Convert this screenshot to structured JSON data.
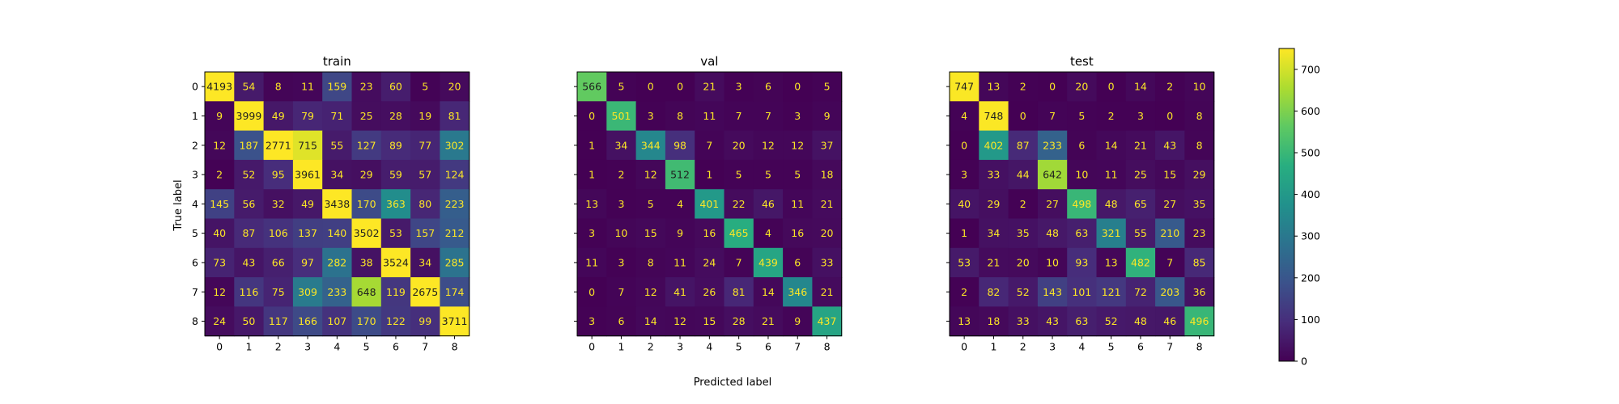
{
  "chart_data": {
    "type": "heatmap",
    "xlabel": "Predicted label",
    "ylabel": "True label",
    "classes": [
      "0",
      "1",
      "2",
      "3",
      "4",
      "5",
      "6",
      "7",
      "8"
    ],
    "colormap": "viridis",
    "color_range": [
      0,
      750
    ],
    "colorbar_ticks": [
      "0",
      "100",
      "200",
      "300",
      "400",
      "500",
      "600",
      "700"
    ],
    "panels": [
      {
        "title": "train",
        "matrix": [
          [
            4193,
            54,
            8,
            11,
            159,
            23,
            60,
            5,
            20
          ],
          [
            9,
            3999,
            49,
            79,
            71,
            25,
            28,
            19,
            81
          ],
          [
            12,
            187,
            2771,
            715,
            55,
            127,
            89,
            77,
            302
          ],
          [
            2,
            52,
            95,
            3961,
            34,
            29,
            59,
            57,
            124
          ],
          [
            145,
            56,
            32,
            49,
            3438,
            170,
            363,
            80,
            223
          ],
          [
            40,
            87,
            106,
            137,
            140,
            3502,
            53,
            157,
            212
          ],
          [
            73,
            43,
            66,
            97,
            282,
            38,
            3524,
            34,
            285
          ],
          [
            12,
            116,
            75,
            309,
            233,
            648,
            119,
            2675,
            174
          ],
          [
            24,
            50,
            117,
            166,
            107,
            170,
            122,
            99,
            3711
          ]
        ]
      },
      {
        "title": "val",
        "matrix": [
          [
            566,
            5,
            0,
            0,
            21,
            3,
            6,
            0,
            5
          ],
          [
            0,
            501,
            3,
            8,
            11,
            7,
            7,
            3,
            9
          ],
          [
            1,
            34,
            344,
            98,
            7,
            20,
            12,
            12,
            37
          ],
          [
            1,
            2,
            12,
            512,
            1,
            5,
            5,
            5,
            18
          ],
          [
            13,
            3,
            5,
            4,
            401,
            22,
            46,
            11,
            21
          ],
          [
            3,
            10,
            15,
            9,
            16,
            465,
            4,
            16,
            20
          ],
          [
            11,
            3,
            8,
            11,
            24,
            7,
            439,
            6,
            33
          ],
          [
            0,
            7,
            12,
            41,
            26,
            81,
            14,
            346,
            21
          ],
          [
            3,
            6,
            14,
            12,
            15,
            28,
            21,
            9,
            437
          ]
        ]
      },
      {
        "title": "test",
        "matrix": [
          [
            747,
            13,
            2,
            0,
            20,
            0,
            14,
            2,
            10
          ],
          [
            4,
            748,
            0,
            7,
            5,
            2,
            3,
            0,
            8
          ],
          [
            0,
            402,
            87,
            233,
            6,
            14,
            21,
            43,
            8
          ],
          [
            3,
            33,
            44,
            642,
            10,
            11,
            25,
            15,
            29
          ],
          [
            40,
            29,
            2,
            27,
            498,
            48,
            65,
            27,
            35
          ],
          [
            1,
            34,
            35,
            48,
            63,
            321,
            55,
            210,
            23
          ],
          [
            53,
            21,
            20,
            10,
            93,
            13,
            482,
            7,
            85
          ],
          [
            2,
            82,
            52,
            143,
            101,
            121,
            72,
            203,
            36
          ],
          [
            13,
            18,
            33,
            43,
            63,
            52,
            48,
            46,
            496
          ]
        ]
      }
    ]
  }
}
